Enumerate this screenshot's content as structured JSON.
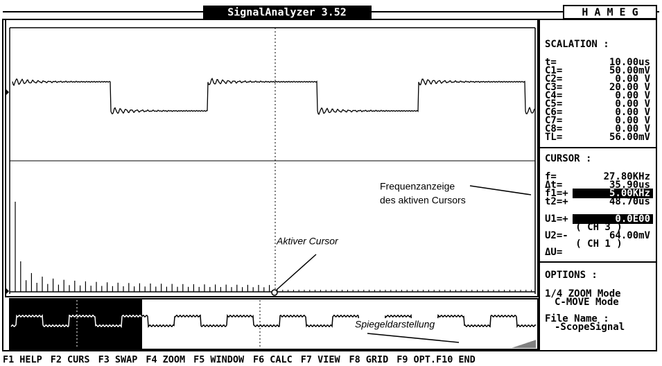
{
  "title_bar": {
    "app_title": "SignalAnalyzer 3.52",
    "brand": "H A M E G"
  },
  "scalation": {
    "heading": "SCALATION :",
    "rows": [
      {
        "label": "t=",
        "value": "10.00us"
      },
      {
        "label": "C1=",
        "value": "50.00mV"
      },
      {
        "label": "C2=",
        "value": "0.00 V"
      },
      {
        "label": "C3=",
        "value": "20.00 V"
      },
      {
        "label": "C4=",
        "value": "0.00 V"
      },
      {
        "label": "C5=",
        "value": "0.00 V"
      },
      {
        "label": "C6=",
        "value": "0.00 V"
      },
      {
        "label": "C7=",
        "value": "0.00 V"
      },
      {
        "label": "C8=",
        "value": "0.00 V"
      },
      {
        "label": "TL=",
        "value": "56.00mV"
      }
    ]
  },
  "cursor": {
    "heading": "CURSOR :",
    "rows": [
      {
        "label": "f=",
        "value": "27.80KHz"
      },
      {
        "label": "Δt=",
        "value": "35.90us"
      },
      {
        "label": "f1=+",
        "value": "5.00KHz",
        "highlight": true
      },
      {
        "label": "t2=+",
        "value": "48.70us"
      },
      {
        "label": "U1=+",
        "value": "0.0E00",
        "highlight": true,
        "channel": "( CH 3 )"
      },
      {
        "label": "U2=-",
        "value": "64.00mV",
        "channel": "( CH 1 )"
      },
      {
        "label": "ΔU="
      }
    ]
  },
  "options": {
    "heading": "OPTIONS :",
    "lines": [
      "1/4 ZOOM Mode",
      "C-MOVE Mode",
      "File Name :",
      "-ScopeSignal"
    ]
  },
  "annotations": {
    "frequency_display": [
      "Frequenzanzeige",
      "des aktiven Cursors"
    ],
    "active_cursor": "Aktiver Cursor",
    "mirror_view": "Spiegeldarstellung"
  },
  "function_keys": [
    {
      "key": "F1",
      "label": "HELP"
    },
    {
      "key": "F2",
      "label": "CURS"
    },
    {
      "key": "F3",
      "label": "SWAP"
    },
    {
      "key": "F4",
      "label": "ZOOM"
    },
    {
      "key": "F5",
      "label": "WINDOW"
    },
    {
      "key": "F6",
      "label": "CALC"
    },
    {
      "key": "F7",
      "label": "VIEW"
    },
    {
      "key": "F8",
      "label": "GRID"
    },
    {
      "key": "F9",
      "label": "OPT."
    },
    {
      "key": "F10",
      "label": "END"
    }
  ]
}
